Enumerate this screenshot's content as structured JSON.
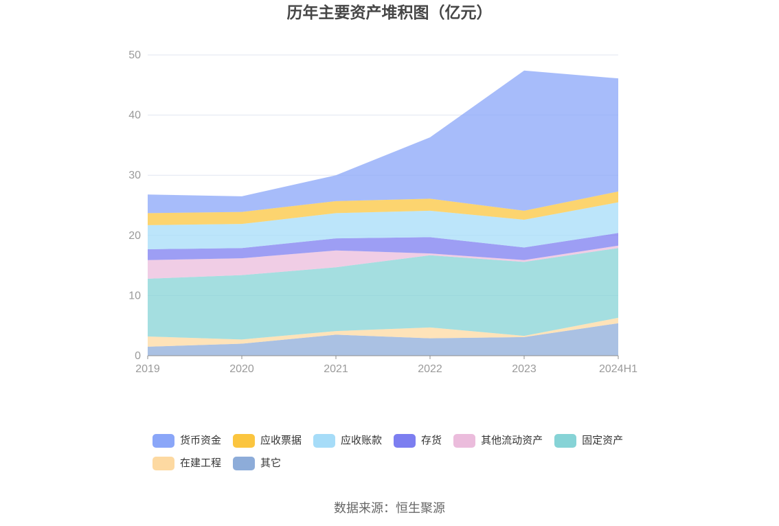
{
  "chart_data": {
    "type": "area",
    "stacked": true,
    "title": "历年主要资产堆积图（亿元）",
    "categories": [
      "2019",
      "2020",
      "2021",
      "2022",
      "2023",
      "2024H1"
    ],
    "ylim": [
      0,
      50
    ],
    "yticks": [
      0,
      10,
      20,
      30,
      40,
      50
    ],
    "grid": true,
    "legend_position": "bottom",
    "series": [
      {
        "name": "货币资金",
        "color": "#8aa6f8",
        "values": [
          3.1,
          2.6,
          4.3,
          10.2,
          23.3,
          18.8
        ]
      },
      {
        "name": "应收票据",
        "color": "#fbc53f",
        "values": [
          2.0,
          2.0,
          2.0,
          2.0,
          1.5,
          1.8
        ]
      },
      {
        "name": "应收账款",
        "color": "#a6dcf8",
        "values": [
          4.0,
          4.0,
          4.2,
          4.4,
          4.6,
          5.1
        ]
      },
      {
        "name": "存货",
        "color": "#7c7ef0",
        "values": [
          1.8,
          1.7,
          2.0,
          2.7,
          2.1,
          2.1
        ]
      },
      {
        "name": "其他流动资产",
        "color": "#ebbcdc",
        "values": [
          3.1,
          2.8,
          2.8,
          0.3,
          0.3,
          0.4
        ]
      },
      {
        "name": "固定资产",
        "color": "#86d3d6",
        "values": [
          9.6,
          10.7,
          10.6,
          12.0,
          12.3,
          11.6
        ]
      },
      {
        "name": "在建工程",
        "color": "#fdd9a1",
        "values": [
          1.7,
          0.7,
          0.6,
          1.8,
          0.2,
          0.9
        ]
      },
      {
        "name": "其它",
        "color": "#8dacd9",
        "values": [
          1.5,
          2.0,
          3.5,
          2.9,
          3.1,
          5.4
        ]
      }
    ]
  },
  "source": "数据来源：恒生聚源"
}
